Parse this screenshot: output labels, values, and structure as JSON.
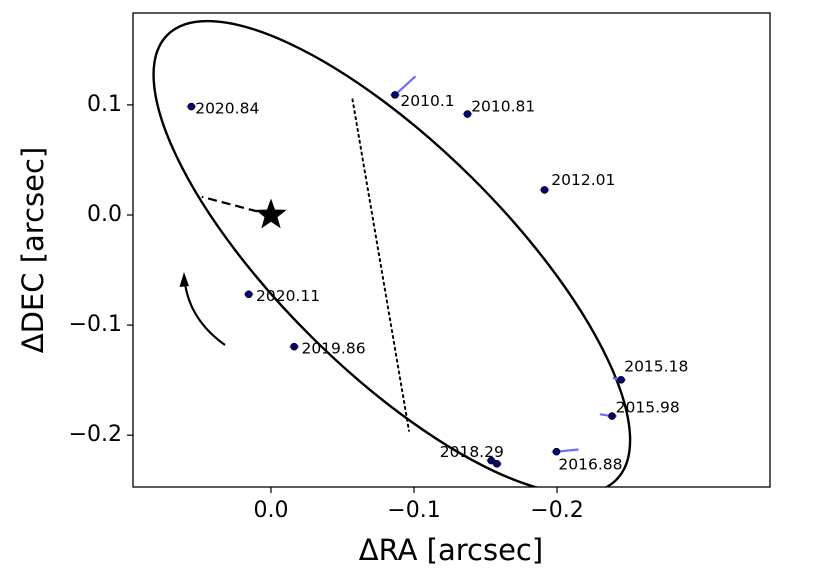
{
  "chart_data": {
    "type": "scatter",
    "title": "",
    "xlabel": "ΔRA [arcsec]",
    "ylabel": "ΔDEC [arcsec]",
    "x_inverted": true,
    "xlim": [
      0.073,
      -0.278
    ],
    "ylim": [
      -0.247,
      0.183
    ],
    "xticks": [
      0.0,
      -0.1,
      -0.2
    ],
    "xtick_labels": [
      "0.0",
      "−0.1",
      "−0.2"
    ],
    "yticks": [
      0.1,
      0.0,
      -0.1,
      -0.2
    ],
    "ytick_labels": [
      "0.1",
      "0.0",
      "−0.1",
      "−0.2"
    ],
    "grid": false,
    "colors": {
      "orbit": "#000000",
      "points": "#000080",
      "residuals": "#6b6bff",
      "error_ellipse": "#808080"
    },
    "star": {
      "x": 0.0,
      "y": 0.0,
      "marker": "star"
    },
    "orbit_ellipse": {
      "cx": -0.0845,
      "cy": -0.0385,
      "semi_major": 0.182,
      "semi_minor": 0.0985,
      "rotation_deg_screen": 44.7
    },
    "line_of_nodes": {
      "x": [
        -0.057,
        -0.0965
      ],
      "y": [
        0.105,
        -0.196
      ],
      "style": "dotted"
    },
    "periastron_line": {
      "x": [
        0.0,
        0.0484
      ],
      "y": [
        0.0,
        0.0165
      ],
      "style": "dashed"
    },
    "direction_arrow": {
      "sense": "counterclockwise"
    },
    "observations": [
      {
        "label": "2010.1",
        "x": -0.0867,
        "y": 0.1091,
        "model_x": -0.101,
        "model_y": 0.126
      },
      {
        "label": "2010.81",
        "x": -0.1374,
        "y": 0.0917,
        "model_x": -0.1374,
        "model_y": 0.0917
      },
      {
        "label": "2012.01",
        "x": -0.1913,
        "y": 0.0228,
        "model_x": -0.189,
        "model_y": 0.025
      },
      {
        "label": "2015.18",
        "x": -0.2448,
        "y": -0.1497,
        "model_x": -0.239,
        "model_y": -0.148
      },
      {
        "label": "2015.98",
        "x": -0.2385,
        "y": -0.1826,
        "model_x": -0.23,
        "model_y": -0.181
      },
      {
        "label": "2016.88",
        "x": -0.1996,
        "y": -0.215,
        "model_x": -0.215,
        "model_y": -0.213
      },
      {
        "label": "2018.29",
        "x": -0.158,
        "y": -0.226,
        "model_x": -0.158,
        "model_y": -0.226
      },
      {
        "label": "2018.29",
        "x": -0.154,
        "y": -0.223,
        "model_x": -0.154,
        "model_y": -0.223
      },
      {
        "label": "2019.86",
        "x": -0.0162,
        "y": -0.1196,
        "model_x": -0.0162,
        "model_y": -0.1196
      },
      {
        "label": "2020.11",
        "x": 0.0156,
        "y": -0.072,
        "model_x": 0.0156,
        "model_y": -0.072
      },
      {
        "label": "2020.84",
        "x": 0.0557,
        "y": 0.0985,
        "model_x": 0.0557,
        "model_y": 0.0985
      }
    ],
    "annotations": [
      {
        "text": "2010.1",
        "x": -0.0905,
        "y": 0.103
      },
      {
        "text": "2010.81",
        "x": -0.14,
        "y": 0.098
      },
      {
        "text": "2012.01",
        "x": -0.196,
        "y": 0.0315
      },
      {
        "text": "2015.18",
        "x": -0.247,
        "y": -0.138
      },
      {
        "text": "2015.98",
        "x": -0.241,
        "y": -0.1755
      },
      {
        "text": "2016.88",
        "x": -0.201,
        "y": -0.227
      },
      {
        "text": "2018.29",
        "x": -0.118,
        "y": -0.2155
      },
      {
        "text": "2019.86",
        "x": -0.0213,
        "y": -0.1215
      },
      {
        "text": "2020.11",
        "x": 0.0105,
        "y": -0.074
      },
      {
        "text": "2020.84",
        "x": 0.053,
        "y": 0.0965
      }
    ]
  }
}
